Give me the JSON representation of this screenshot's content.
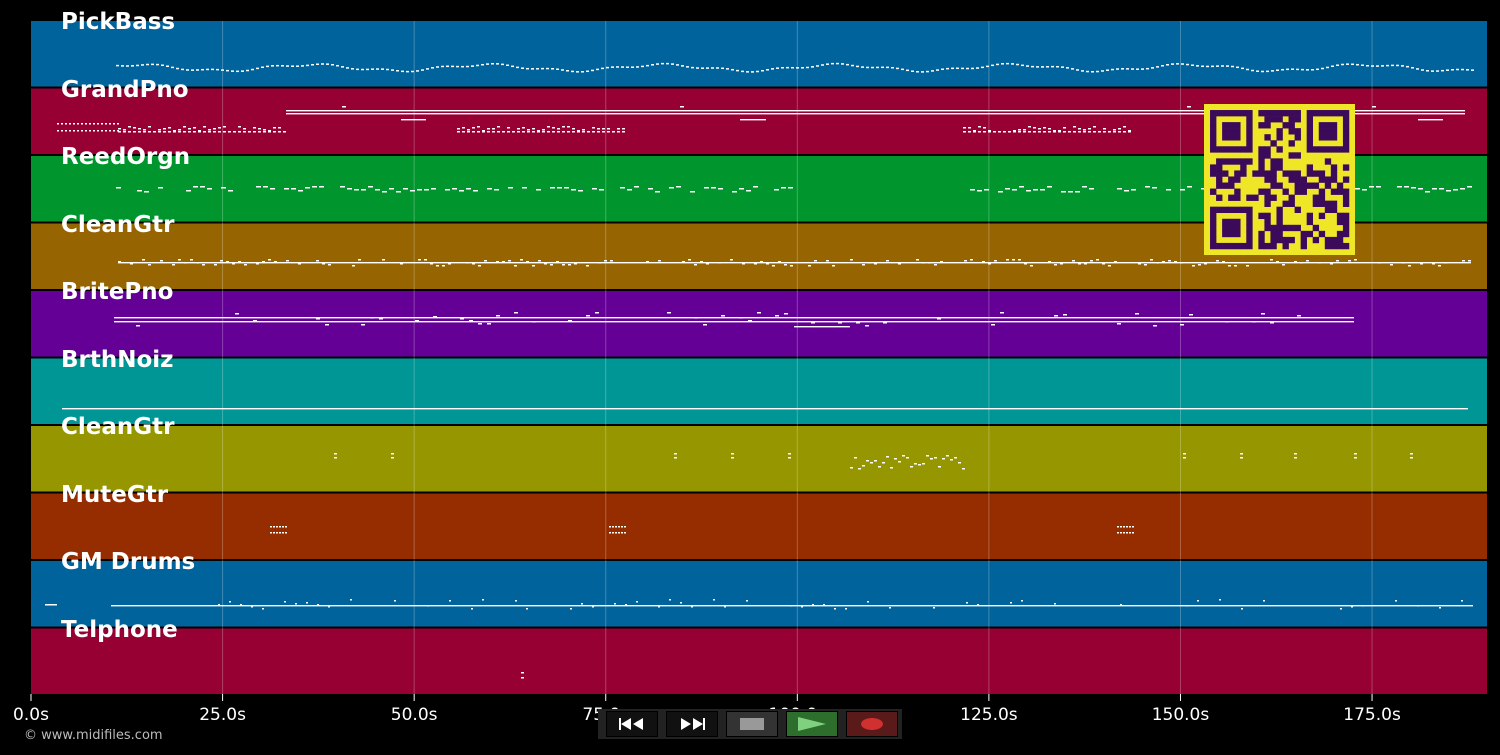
{
  "copyright": "© www.midifiles.com",
  "timeline": {
    "max_seconds": 190,
    "ticks": [
      {
        "value": 0,
        "label": "0.0s"
      },
      {
        "value": 25,
        "label": "25.0s"
      },
      {
        "value": 50,
        "label": "50.0s"
      },
      {
        "value": 75,
        "label": "75.0s"
      },
      {
        "value": 100,
        "label": "100.0s"
      },
      {
        "value": 125,
        "label": "125.0s"
      },
      {
        "value": 150,
        "label": "150.0s"
      },
      {
        "value": 175,
        "label": "175.0s"
      }
    ]
  },
  "tracks": [
    {
      "name": "PickBass",
      "color": "#00639b"
    },
    {
      "name": "GrandPno",
      "color": "#960032"
    },
    {
      "name": "ReedOrgn",
      "color": "#00962d"
    },
    {
      "name": "CleanGtr",
      "color": "#966400"
    },
    {
      "name": "BritePno",
      "color": "#640096"
    },
    {
      "name": "BrthNoiz",
      "color": "#009696"
    },
    {
      "name": "CleanGtr",
      "color": "#969600"
    },
    {
      "name": "MuteGtr",
      "color": "#962d00"
    },
    {
      "name": "GM Drums",
      "color": "#00639b"
    },
    {
      "name": "Telphone",
      "color": "#960032"
    }
  ],
  "transport": {
    "buttons": [
      {
        "name": "rewind",
        "icon": "rewind-icon",
        "bg": "#111"
      },
      {
        "name": "fast-forward",
        "icon": "fast-forward-icon",
        "bg": "#111"
      },
      {
        "name": "stop",
        "icon": "stop-icon",
        "bg": "#333"
      },
      {
        "name": "play",
        "icon": "play-icon",
        "bg": "#2d6e2d"
      },
      {
        "name": "record",
        "icon": "record-icon",
        "bg": "#5a1a1a"
      }
    ]
  },
  "qr_code": {
    "icon": "qr-code-icon",
    "fg": "#3c0a5a",
    "bg": "#f0e628"
  }
}
